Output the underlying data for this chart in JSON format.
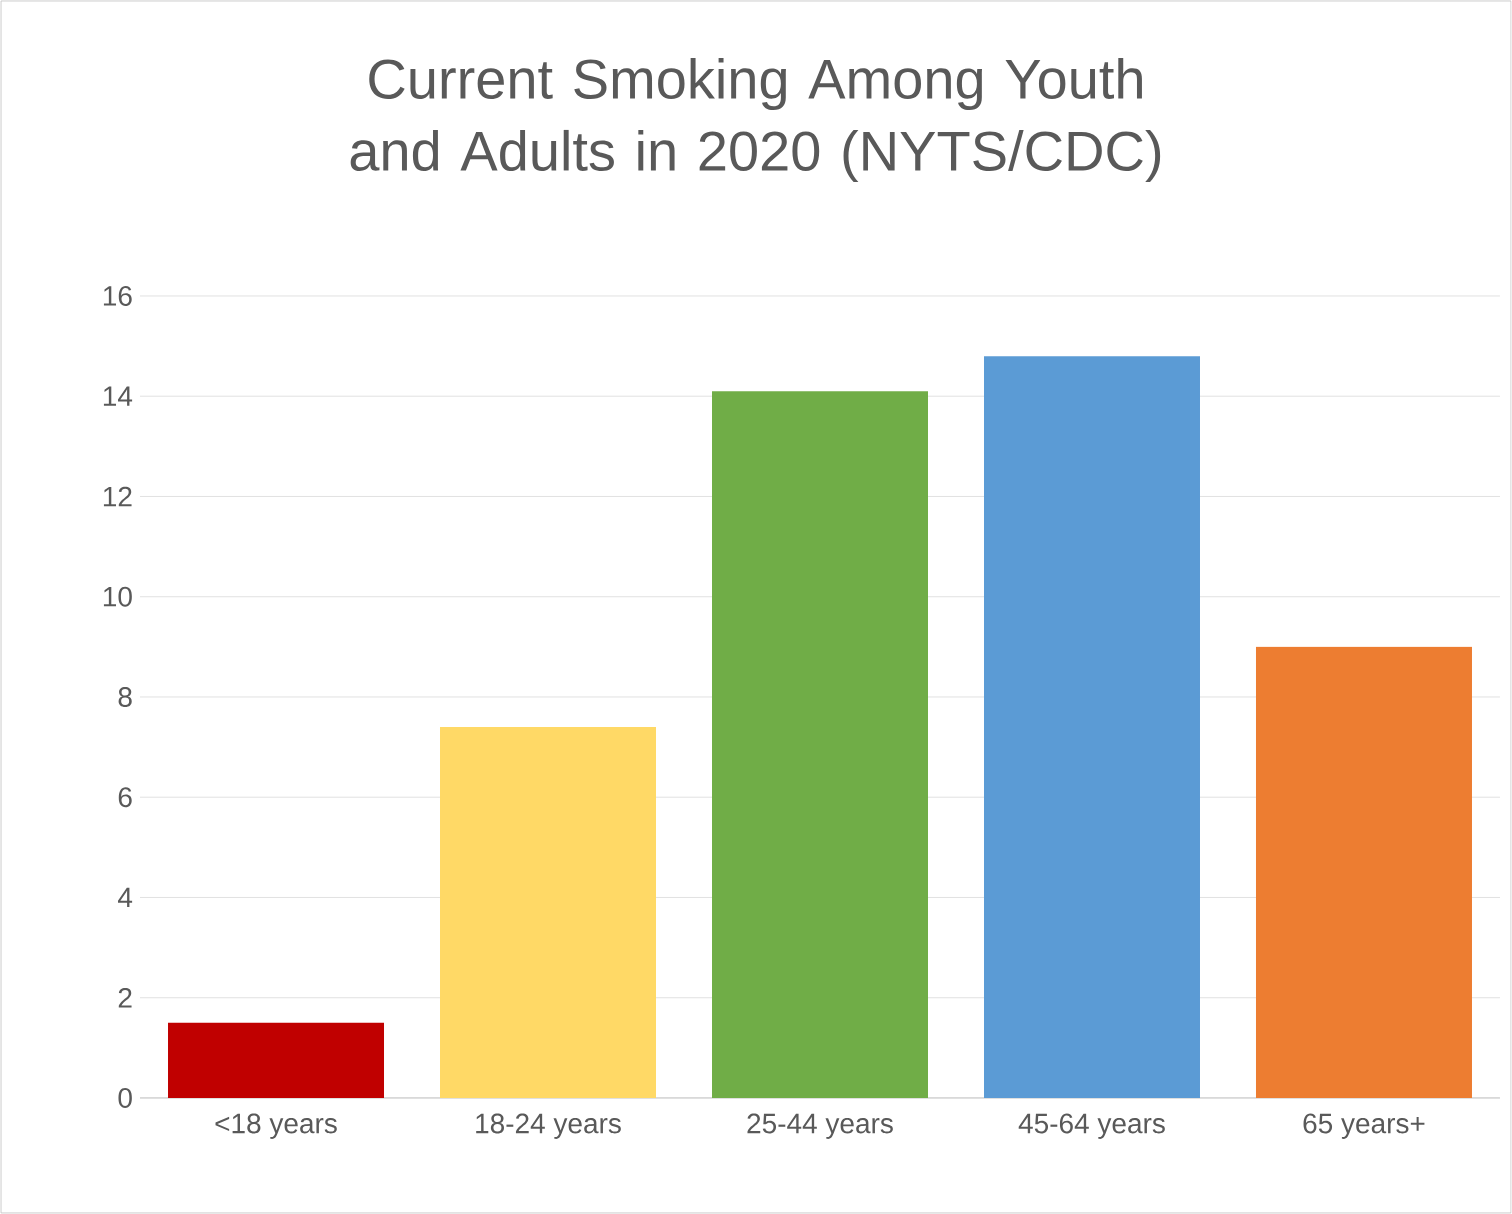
{
  "chart_data": {
    "type": "bar",
    "title": "Current Smoking Among Youth and Adults in 2020 (NYTS/CDC)",
    "categories": [
      "<18 years",
      "18-24 years",
      "25-44 years",
      "45-64 years",
      "65 years+"
    ],
    "values": [
      1.5,
      7.4,
      14.1,
      14.8,
      9.0
    ],
    "colors": [
      "#c00000",
      "#ffd966",
      "#70ad47",
      "#5b9bd5",
      "#ed7d31"
    ],
    "ylim": [
      0,
      16
    ],
    "yticks": [
      0,
      2,
      4,
      6,
      8,
      10,
      12,
      14,
      16
    ],
    "grid": "y"
  }
}
